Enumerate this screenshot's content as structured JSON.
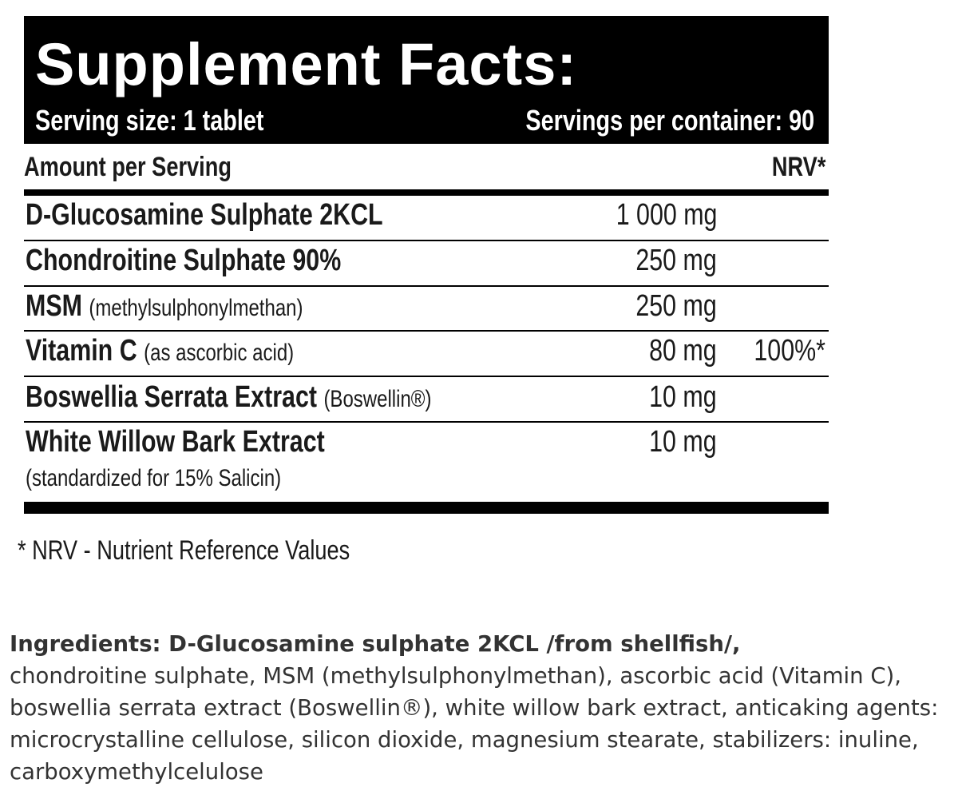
{
  "header": {
    "title": "Supplement Facts:",
    "serving_size": "Serving size: 1 tablet",
    "servings_per_container": "Servings per container: 90"
  },
  "table": {
    "columns": [
      "Amount per Serving",
      "NRV*"
    ],
    "rows": [
      {
        "name": "D-Glucosamine Sulphate 2KCL",
        "amount": "1 000 mg"
      },
      {
        "name": "Chondroitine Sulphate 90%",
        "amount": "250 mg"
      },
      {
        "name": "MSM",
        "note": "(methylsulphonylmethan)",
        "amount": "250 mg"
      },
      {
        "name": "Vitamin C",
        "note": "(as ascorbic acid)",
        "amount": "80 mg",
        "nrv": "100%*"
      },
      {
        "name": "Boswellia Serrata Extract",
        "note": "(Boswellin®)",
        "amount": "10 mg"
      },
      {
        "name": "White Willow Bark Extract",
        "note": "(standardized for 15% Salicin)",
        "amount": "10 mg"
      }
    ]
  },
  "footnote": "* NRV - Nutrient Reference Values",
  "ingredients": {
    "lead": "Ingredients: D-Glucosamine sulphate 2KCL /from shellfish/,",
    "text": "chondroitine sulphate, MSM (methylsulphonylmethan), ascorbic acid (Vitamin C), boswellia serrata extract (Boswellin®), white willow bark extract, anticaking agents: microcrystalline cellulose, silicon dioxide, magnesium stearate, stabilizers: inuline, carboxymethylcelulose"
  }
}
